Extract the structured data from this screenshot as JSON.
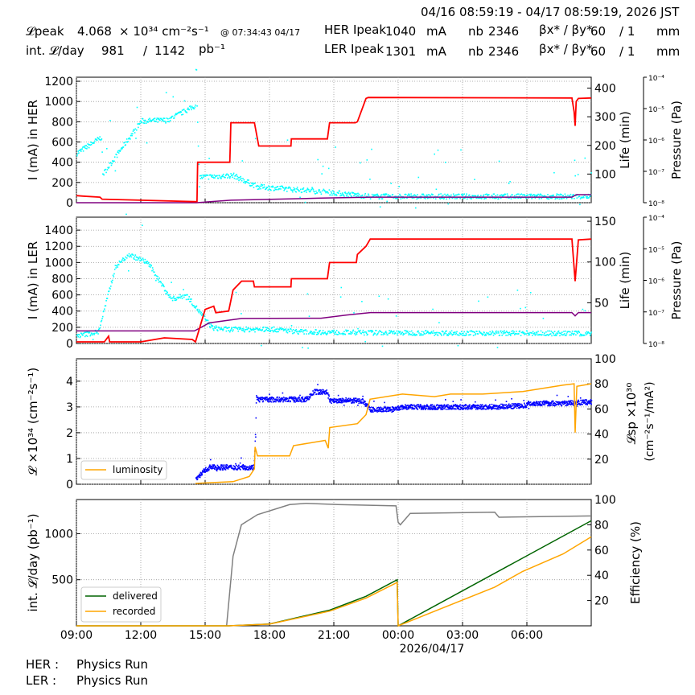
{
  "header": {
    "range": "04/16 08:59:19 - 04/17 08:59:19, 2026 JST",
    "lpeak_label": "𝓛peak",
    "lpeak_value": "4.068",
    "lpeak_unit": "× 10³⁴ cm⁻²s⁻¹",
    "lpeak_time": "@ 07:34:43 04/17",
    "intl_label": "int. 𝓛/day",
    "intl_value": "981",
    "intl_sep": "/",
    "intl_total": "1142",
    "intl_unit": "pb⁻¹",
    "her_label": "HER Ipeak",
    "her_value": "1040",
    "her_unit": "mA",
    "her_nb_label": "nb",
    "her_nb": "2346",
    "her_beta_label": "βx* / βy*",
    "her_bx": "60",
    "her_by": "/ 1",
    "her_beta_unit": "mm",
    "ler_label": "LER Ipeak",
    "ler_value": "1301",
    "ler_unit": "mA",
    "ler_nb_label": "nb",
    "ler_nb": "2346",
    "ler_beta_label": "βx* / βy*",
    "ler_bx": "60",
    "ler_by": "/ 1",
    "ler_beta_unit": "mm"
  },
  "footer": {
    "her_label": "HER :",
    "her_status": "Physics Run",
    "ler_label": "LER :",
    "ler_status": "Physics Run"
  },
  "colors": {
    "current": "#ff0000",
    "life": "#00ffff",
    "pressure": "#800080",
    "specific": "#0000ff",
    "lumi": "#ffa500",
    "delivered": "#006400",
    "recorded": "#ffa500",
    "efficiency": "#808080"
  },
  "chart_data": [
    {
      "type": "line",
      "name": "HER",
      "ylabel": "I (mA) in HER",
      "y2label": "Life (min)",
      "y3label": "Pressure (Pa)",
      "ylim": [
        0,
        1240
      ],
      "y2lim": [
        0,
        438
      ],
      "y3lim": [
        1e-08,
        0.0001
      ],
      "yticks": [
        0,
        200,
        400,
        600,
        800,
        1000,
        1200
      ],
      "y2ticks": [
        100,
        200,
        300,
        400
      ],
      "y3ticks": [
        "10⁻⁸",
        "10⁻⁷",
        "10⁻⁶",
        "10⁻⁵",
        "10⁻⁴"
      ],
      "current": [
        [
          0,
          70
        ],
        [
          0.3,
          65
        ],
        [
          1.1,
          55
        ],
        [
          1.2,
          35
        ],
        [
          3,
          25
        ],
        [
          5.5,
          10
        ],
        [
          5.62,
          12
        ],
        [
          5.65,
          400
        ],
        [
          7.15,
          400
        ],
        [
          7.2,
          790
        ],
        [
          8.3,
          790
        ],
        [
          8.5,
          560
        ],
        [
          10.0,
          560
        ],
        [
          10.02,
          630
        ],
        [
          11.7,
          630
        ],
        [
          11.8,
          790
        ],
        [
          13.0,
          790
        ],
        [
          13.1,
          800
        ],
        [
          13.5,
          1030
        ],
        [
          13.6,
          1040
        ],
        [
          23.1,
          1035
        ],
        [
          23.2,
          900
        ],
        [
          23.25,
          760
        ],
        [
          23.3,
          1000
        ],
        [
          23.4,
          1030
        ],
        [
          24,
          1035
        ]
      ],
      "life": [
        [
          0,
          175
        ],
        [
          1.15,
          231
        ],
        [
          1.2,
          100
        ],
        [
          3,
          287
        ],
        [
          4.2,
          290
        ],
        [
          5.6,
          343
        ],
        [
          5.7,
          91
        ],
        [
          7.3,
          97
        ],
        [
          8.4,
          58
        ],
        [
          11.4,
          41
        ],
        [
          12.2,
          35
        ],
        [
          13.7,
          24
        ],
        [
          24,
          24
        ]
      ],
      "pressure": [
        [
          0,
          1e-08
        ],
        [
          5.6,
          1e-08
        ],
        [
          7.2,
          1.2e-08
        ],
        [
          11.4,
          1.4e-08
        ],
        [
          13.7,
          1.5e-08
        ],
        [
          23.1,
          1.5e-08
        ],
        [
          23.3,
          1.8e-08
        ],
        [
          24,
          1.8e-08
        ]
      ]
    },
    {
      "type": "line",
      "name": "LER",
      "ylabel": "I (mA) in LER",
      "y2label": "Life (min)",
      "y3label": "Pressure (Pa)",
      "ylim": [
        0,
        1560
      ],
      "y2lim": [
        0,
        155
      ],
      "y3lim": [
        1e-08,
        0.0001
      ],
      "yticks": [
        0,
        200,
        400,
        600,
        800,
        1000,
        1200,
        1400
      ],
      "y2ticks": [
        50,
        100,
        150
      ],
      "y3ticks": [
        "10⁻⁸",
        "10⁻⁷",
        "10⁻⁶",
        "10⁻⁵",
        "10⁻⁴"
      ],
      "current": [
        [
          0,
          20
        ],
        [
          1.3,
          20
        ],
        [
          1.5,
          90
        ],
        [
          1.55,
          20
        ],
        [
          3,
          20
        ],
        [
          4.1,
          70
        ],
        [
          5.4,
          50
        ],
        [
          5.55,
          20
        ],
        [
          6.0,
          420
        ],
        [
          6.4,
          460
        ],
        [
          6.5,
          380
        ],
        [
          7.1,
          400
        ],
        [
          7.3,
          660
        ],
        [
          7.7,
          770
        ],
        [
          8.25,
          770
        ],
        [
          8.3,
          700
        ],
        [
          10.0,
          700
        ],
        [
          10.02,
          800
        ],
        [
          11.7,
          800
        ],
        [
          11.8,
          1000
        ],
        [
          13.05,
          1000
        ],
        [
          13.1,
          1100
        ],
        [
          13.5,
          1200
        ],
        [
          13.7,
          1290
        ],
        [
          23.1,
          1290
        ],
        [
          23.25,
          770
        ],
        [
          23.4,
          1280
        ],
        [
          24,
          1290
        ]
      ],
      "life": [
        [
          0,
          10
        ],
        [
          1.0,
          15
        ],
        [
          1.8,
          95
        ],
        [
          2.4,
          110
        ],
        [
          3.3,
          100
        ],
        [
          4.4,
          55
        ],
        [
          5.1,
          60
        ],
        [
          6.3,
          20
        ],
        [
          7.0,
          18
        ],
        [
          9.2,
          18
        ],
        [
          10.5,
          15
        ],
        [
          13.5,
          14
        ],
        [
          24,
          13
        ]
      ],
      "pressure": [
        [
          0,
          2.5e-08
        ],
        [
          5.5,
          2.5e-08
        ],
        [
          6.2,
          4.5e-08
        ],
        [
          7.7,
          6.2e-08
        ],
        [
          11.4,
          6.3e-08
        ],
        [
          12.6,
          8e-08
        ],
        [
          13.7,
          9.5e-08
        ],
        [
          23.1,
          9.5e-08
        ],
        [
          23.25,
          7.5e-08
        ],
        [
          23.4,
          9.5e-08
        ],
        [
          24,
          9.5e-08
        ]
      ]
    },
    {
      "type": "line",
      "name": "Luminosity",
      "ylabel": "𝓛 ×10³⁴ (cm⁻²s⁻¹)",
      "y2label": "𝓛sp ×10³⁰ (cm⁻²s⁻¹/mA²)",
      "ylim": [
        0,
        4.87
      ],
      "y2lim": [
        0,
        100
      ],
      "yticks": [
        0,
        1,
        2,
        3,
        4
      ],
      "y2ticks": [
        20,
        40,
        60,
        80,
        100
      ],
      "legend": [
        "luminosity"
      ],
      "legend_position": "lower-left",
      "lumi": [
        [
          5.55,
          0.03
        ],
        [
          6.0,
          0.05
        ],
        [
          7.3,
          0.1
        ],
        [
          8.06,
          0.3
        ],
        [
          8.3,
          0.6
        ],
        [
          8.33,
          1.45
        ],
        [
          8.44,
          1.1
        ],
        [
          9.94,
          1.1
        ],
        [
          10.12,
          1.5
        ],
        [
          11.6,
          1.7
        ],
        [
          11.74,
          1.4
        ],
        [
          11.81,
          2.2
        ],
        [
          13.1,
          2.35
        ],
        [
          13.5,
          2.7
        ],
        [
          13.69,
          3.3
        ],
        [
          15.2,
          3.5
        ],
        [
          16.69,
          3.4
        ],
        [
          17.44,
          3.5
        ],
        [
          18.94,
          3.5
        ],
        [
          20.81,
          3.6
        ],
        [
          22.69,
          3.85
        ],
        [
          23.2,
          3.9
        ],
        [
          23.25,
          2.0
        ],
        [
          23.33,
          3.8
        ],
        [
          24,
          3.9
        ]
      ],
      "specific": [
        [
          5.55,
          5
        ],
        [
          6.0,
          12
        ],
        [
          6.19,
          14
        ],
        [
          8.25,
          14
        ],
        [
          8.33,
          40
        ],
        [
          8.36,
          70
        ],
        [
          8.44,
          68
        ],
        [
          10.69,
          68
        ],
        [
          11.06,
          74
        ],
        [
          11.63,
          74
        ],
        [
          11.81,
          67
        ],
        [
          13.31,
          67
        ],
        [
          13.69,
          60
        ],
        [
          14.81,
          60
        ],
        [
          15.19,
          62
        ],
        [
          18.94,
          62
        ],
        [
          20.81,
          63
        ],
        [
          21.19,
          65
        ],
        [
          22.69,
          65
        ],
        [
          24,
          66
        ]
      ]
    },
    {
      "type": "line",
      "name": "Integrated",
      "ylabel": "int. 𝓛/day (pb⁻¹)",
      "y2label": "Efficiency (%)",
      "ylim": [
        0,
        1370
      ],
      "y2lim": [
        0,
        100
      ],
      "yticks": [
        500,
        1000
      ],
      "y2ticks": [
        20,
        40,
        60,
        80,
        100
      ],
      "legend": [
        "delivered",
        "recorded"
      ],
      "legend_position": "lower-left",
      "xticks": [
        "09:00",
        "12:00",
        "15:00",
        "18:00",
        "21:00",
        "00:00",
        "03:00",
        "06:00"
      ],
      "xdate": "2026/04/17",
      "delivered": [
        [
          0,
          0
        ],
        [
          7.1,
          0
        ],
        [
          9.0,
          20
        ],
        [
          11.81,
          170
        ],
        [
          13.5,
          320
        ],
        [
          14.95,
          500
        ],
        [
          15.0,
          0
        ],
        [
          24,
          1140
        ]
      ],
      "recorded": [
        [
          0,
          0
        ],
        [
          7.1,
          0
        ],
        [
          9.0,
          18
        ],
        [
          11.81,
          160
        ],
        [
          13.5,
          300
        ],
        [
          14.95,
          470
        ],
        [
          15.0,
          0
        ],
        [
          19.5,
          420
        ],
        [
          20.8,
          590
        ],
        [
          22.69,
          780
        ],
        [
          24,
          965
        ]
      ],
      "efficiency": [
        [
          7.0,
          0
        ],
        [
          7.3,
          55
        ],
        [
          7.69,
          80
        ],
        [
          8.44,
          88
        ],
        [
          9.94,
          96
        ],
        [
          10.69,
          97
        ],
        [
          12.19,
          96
        ],
        [
          14.9,
          95
        ],
        [
          15.0,
          82
        ],
        [
          15.1,
          80
        ],
        [
          15.56,
          89
        ],
        [
          19.5,
          90
        ],
        [
          19.7,
          86
        ],
        [
          24,
          87
        ]
      ]
    }
  ]
}
